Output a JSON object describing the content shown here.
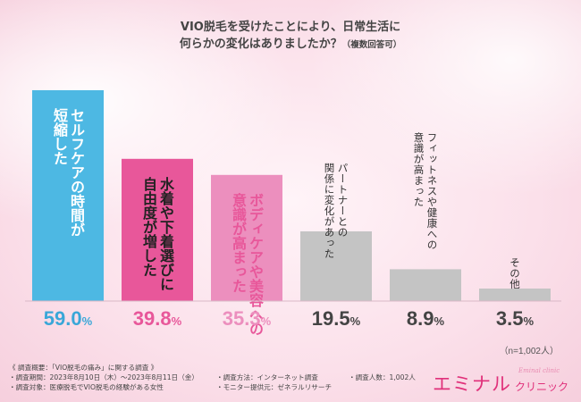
{
  "chart_data": {
    "type": "bar",
    "title_lines": [
      "VIO脱毛を受けたことにより、日常生活に",
      "何らかの変化はありましたか？"
    ],
    "title_suffix": "（複数回答可）",
    "categories": [
      "セルフケアの時間が短縮した",
      "水着や下着選びに自由度が増した",
      "ボディケアや美容への意識が高まった",
      "パートナーとの関係に変化があった",
      "フィットネスや健康への意識が高まった",
      "その他"
    ],
    "category_label_lines": [
      [
        "セルフケアの時間が",
        "短縮した"
      ],
      [
        "水着や下着選びに",
        "自由度が増した"
      ],
      [
        "ボディケアや美容への",
        "意識が高まった"
      ],
      [
        "パートナーとの",
        "関係に変化があった"
      ],
      [
        "フィットネスや健康への",
        "意識が高まった"
      ],
      [
        "その他"
      ]
    ],
    "values": [
      59.0,
      39.8,
      35.3,
      19.5,
      8.9,
      3.5
    ],
    "value_labels": [
      {
        "num": "59.0",
        "unit": "%"
      },
      {
        "num": "39.8",
        "unit": "%"
      },
      {
        "num": "35.3",
        "unit": "%"
      },
      {
        "num": "19.5",
        "unit": "%"
      },
      {
        "num": "8.9",
        "unit": "%"
      },
      {
        "num": "3.5",
        "unit": "%"
      }
    ],
    "bar_colors": [
      "#4db8e3",
      "#e8579a",
      "#ec8fbe",
      "#c4c4c4",
      "#c4c4c4",
      "#c4c4c4"
    ],
    "label_colors": [
      "#ffffff",
      "#222222",
      "#e8579a",
      "#333333",
      "#333333",
      "#333333"
    ],
    "value_colors": [
      "#3aa7d8",
      "#e8579a",
      "#ec8fbe",
      "#444444",
      "#444444",
      "#444444"
    ],
    "ylim": [
      0,
      60
    ],
    "sample_note": "（n=1,002人）"
  },
  "footer": {
    "heading": "《 調査概要：「VIO脱毛の痛み」に関する調査 》",
    "period": "・調査期間：2023年8月10日（木）〜2023年8月11日（金）",
    "method": "・調査方法：インターネット調査",
    "count": "・調査人数：1,002人",
    "target": "・調査対象：医療脱毛でVIO脱毛の経験がある女性",
    "provider": "・モニター提供元：ゼネラルリサーチ"
  },
  "logo": {
    "main": "エミナル",
    "sub": "クリニック",
    "script": "Eminal clinic"
  }
}
